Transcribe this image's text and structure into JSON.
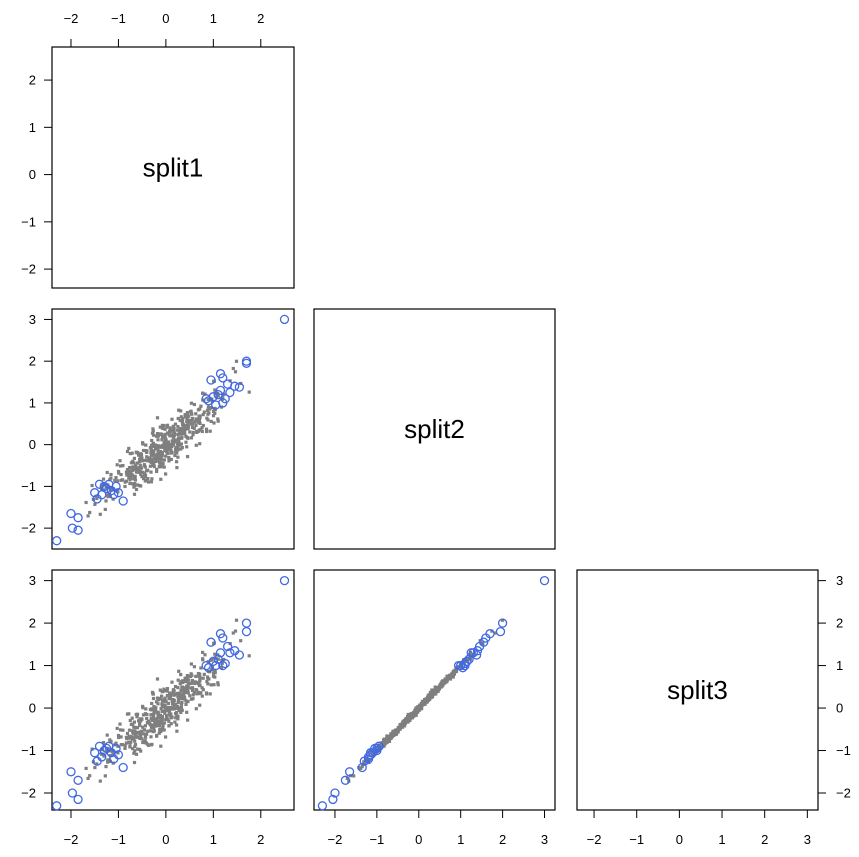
{
  "chart_data": {
    "type": "scatter",
    "layout": "lower-triangle pairs plot",
    "variables": [
      "split1",
      "split2",
      "split3"
    ],
    "colors": {
      "bulk": "#7f7f7f",
      "highlight": "#4169e1",
      "frame": "#000000"
    },
    "axes": {
      "split1": {
        "range": [
          -2.4,
          2.7
        ],
        "ticks": [
          "−2",
          "−1",
          "0",
          "1",
          "2"
        ]
      },
      "split2": {
        "range": [
          -2.5,
          3.25
        ],
        "ticks": [
          "−2",
          "−1",
          "0",
          "1",
          "2",
          "3"
        ]
      },
      "split3": {
        "range": [
          -2.4,
          3.25
        ],
        "ticks": [
          "−2",
          "−1",
          "0",
          "1",
          "2",
          "3"
        ]
      }
    },
    "bulk_series": {
      "name": "",
      "marker": "small filled square",
      "count": 500,
      "pair_correlation": {
        "split1_split2": 0.9,
        "split1_split3": 0.9,
        "split2_split3": 0.998
      }
    },
    "highlight_series": {
      "name": "",
      "marker": "open circle",
      "points": [
        {
          "split1": -2.3,
          "split2": -2.3,
          "split3": -2.3
        },
        {
          "split1": -2.0,
          "split2": -1.65,
          "split3": -1.5
        },
        {
          "split1": -1.97,
          "split2": -2.0,
          "split3": -2.0
        },
        {
          "split1": -1.85,
          "split2": -1.75,
          "split3": -1.7
        },
        {
          "split1": -1.85,
          "split2": -2.05,
          "split3": -2.15
        },
        {
          "split1": -1.5,
          "split2": -1.15,
          "split3": -1.05
        },
        {
          "split1": -1.45,
          "split2": -1.3,
          "split3": -1.25
        },
        {
          "split1": -1.4,
          "split2": -0.95,
          "split3": -0.9
        },
        {
          "split1": -1.35,
          "split2": -1.2,
          "split3": -1.15
        },
        {
          "split1": -1.3,
          "split2": -1.0,
          "split3": -1.0
        },
        {
          "split1": -1.25,
          "split2": -1.05,
          "split3": -0.95
        },
        {
          "split1": -1.2,
          "split2": -0.95,
          "split3": -0.9
        },
        {
          "split1": -1.15,
          "split2": -1.1,
          "split3": -1.05
        },
        {
          "split1": -1.1,
          "split2": -1.2,
          "split3": -1.2
        },
        {
          "split1": -1.05,
          "split2": -1.0,
          "split3": -0.95
        },
        {
          "split1": -1.0,
          "split2": -1.15,
          "split3": -1.1
        },
        {
          "split1": -0.9,
          "split2": -1.35,
          "split3": -1.4
        },
        {
          "split1": 0.85,
          "split2": 1.1,
          "split3": 1.0
        },
        {
          "split1": 0.9,
          "split2": 1.05,
          "split3": 0.95
        },
        {
          "split1": 0.95,
          "split2": 1.55,
          "split3": 1.55
        },
        {
          "split1": 1.0,
          "split2": 1.15,
          "split3": 1.1
        },
        {
          "split1": 1.05,
          "split2": 0.95,
          "split3": 1.0
        },
        {
          "split1": 1.1,
          "split2": 1.2,
          "split3": 1.15
        },
        {
          "split1": 1.15,
          "split2": 1.7,
          "split3": 1.75
        },
        {
          "split1": 1.15,
          "split2": 1.3,
          "split3": 1.3
        },
        {
          "split1": 1.2,
          "split2": 1.6,
          "split3": 1.65
        },
        {
          "split1": 1.2,
          "split2": 1.0,
          "split3": 1.0
        },
        {
          "split1": 1.25,
          "split2": 1.1,
          "split3": 1.05
        },
        {
          "split1": 1.3,
          "split2": 1.45,
          "split3": 1.45
        },
        {
          "split1": 1.35,
          "split2": 1.25,
          "split3": 1.3
        },
        {
          "split1": 1.45,
          "split2": 1.4,
          "split3": 1.35
        },
        {
          "split1": 1.55,
          "split2": 1.38,
          "split3": 1.25
        },
        {
          "split1": 1.7,
          "split2": 2.0,
          "split3": 2.0
        },
        {
          "split1": 1.7,
          "split2": 1.95,
          "split3": 1.8
        },
        {
          "split1": 2.5,
          "split2": 3.0,
          "split3": 3.0
        }
      ]
    }
  }
}
